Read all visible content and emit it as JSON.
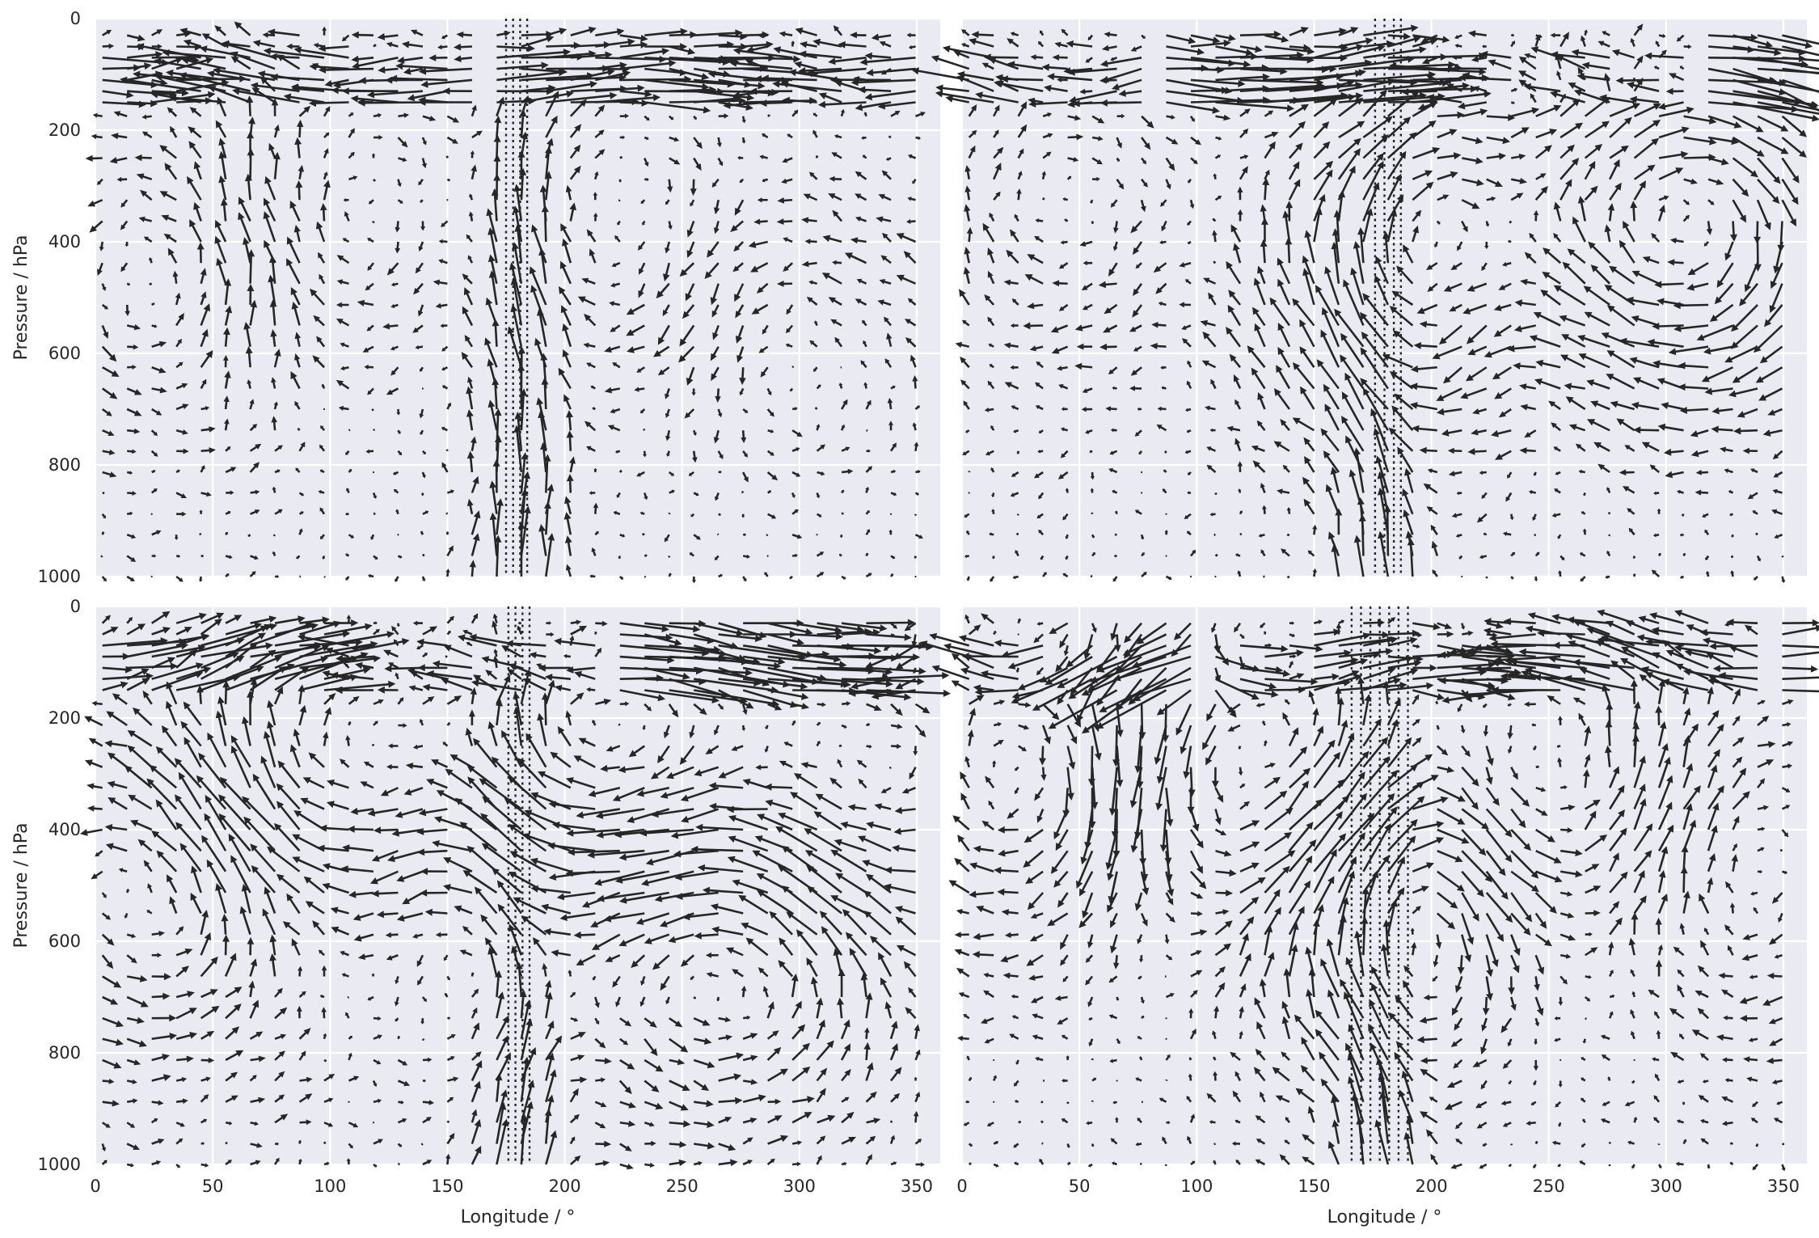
{
  "figure": {
    "colors": {
      "background": "#eaeaf2",
      "grid": "#ffffff",
      "ink": "#262626"
    }
  },
  "chart_data": [
    {
      "type": "quiver",
      "panel": "top-left",
      "xlabel": "",
      "ylabel": "Pressure / hPa",
      "xlim": [
        0,
        360
      ],
      "ylim": [
        1000,
        0
      ],
      "xticks": [
        0,
        50,
        100,
        150,
        200,
        250,
        300,
        350
      ],
      "yticks": [
        0,
        200,
        400,
        600,
        800,
        1000
      ],
      "show_xticklabels": false,
      "show_yticklabels": true,
      "grid": true,
      "seed": 11,
      "center_lon": 180,
      "dotted_markers": [
        175,
        178,
        181,
        184
      ],
      "vortices": [
        {
          "lon": 50,
          "p": 450,
          "strength": 1.0,
          "sign": -1
        },
        {
          "lon": 110,
          "p": 420,
          "strength": 1.5,
          "sign": 1
        },
        {
          "lon": 160,
          "p": 450,
          "strength": 1.3,
          "sign": -1
        },
        {
          "lon": 215,
          "p": 420,
          "strength": 1.2,
          "sign": 1
        },
        {
          "lon": 290,
          "p": 480,
          "strength": 0.7,
          "sign": -1
        },
        {
          "lon": 335,
          "p": 300,
          "strength": 0.6,
          "sign": 1
        }
      ]
    },
    {
      "type": "quiver",
      "panel": "top-right",
      "xlabel": "",
      "ylabel": "",
      "xlim": [
        0,
        360
      ],
      "ylim": [
        1000,
        0
      ],
      "xticks": [
        0,
        50,
        100,
        150,
        200,
        250,
        300,
        350
      ],
      "yticks": [
        0,
        200,
        400,
        600,
        800,
        1000
      ],
      "show_xticklabels": false,
      "show_yticklabels": false,
      "grid": true,
      "seed": 23,
      "center_lon": 178,
      "dotted_markers": [
        176,
        180,
        184,
        187
      ],
      "vortices": [
        {
          "lon": 60,
          "p": 350,
          "strength": 0.8,
          "sign": 1
        },
        {
          "lon": 130,
          "p": 450,
          "strength": 0.9,
          "sign": -1
        },
        {
          "lon": 178,
          "p": 450,
          "strength": 2.0,
          "sign": 1
        },
        {
          "lon": 230,
          "p": 500,
          "strength": 0.7,
          "sign": -1
        },
        {
          "lon": 305,
          "p": 380,
          "strength": 1.6,
          "sign": 1
        }
      ]
    },
    {
      "type": "quiver",
      "panel": "bottom-left",
      "xlabel": "Longitude / °",
      "ylabel": "Pressure / hPa",
      "xlim": [
        0,
        360
      ],
      "ylim": [
        1000,
        0
      ],
      "xticks": [
        0,
        50,
        100,
        150,
        200,
        250,
        300,
        350
      ],
      "yticks": [
        0,
        200,
        400,
        600,
        800,
        1000
      ],
      "show_xticklabels": true,
      "show_yticklabels": true,
      "grid": true,
      "seed": 37,
      "center_lon": 180,
      "dotted_markers": [
        176,
        179,
        182,
        185
      ],
      "vortices": [
        {
          "lon": 30,
          "p": 500,
          "strength": 1.1,
          "sign": -1
        },
        {
          "lon": 105,
          "p": 330,
          "strength": 1.3,
          "sign": 1
        },
        {
          "lon": 160,
          "p": 450,
          "strength": 0.9,
          "sign": -1
        },
        {
          "lon": 215,
          "p": 280,
          "strength": 1.5,
          "sign": 1
        },
        {
          "lon": 270,
          "p": 600,
          "strength": 1.1,
          "sign": -1
        },
        {
          "lon": 335,
          "p": 320,
          "strength": 1.0,
          "sign": 1
        }
      ]
    },
    {
      "type": "quiver",
      "panel": "bottom-right",
      "xlabel": "Longitude / °",
      "ylabel": "",
      "xlim": [
        0,
        360
      ],
      "ylim": [
        1000,
        0
      ],
      "xticks": [
        0,
        50,
        100,
        150,
        200,
        250,
        300,
        350
      ],
      "yticks": [
        0,
        200,
        400,
        600,
        800,
        1000
      ],
      "show_xticklabels": true,
      "show_yticklabels": false,
      "grid": true,
      "seed": 53,
      "center_lon": 178,
      "dotted_markers": [
        166,
        170,
        174,
        178,
        182,
        186,
        190
      ],
      "vortices": [
        {
          "lon": 40,
          "p": 300,
          "strength": 1.2,
          "sign": 1
        },
        {
          "lon": 120,
          "p": 350,
          "strength": 1.5,
          "sign": -1
        },
        {
          "lon": 178,
          "p": 500,
          "strength": 1.6,
          "sign": 1
        },
        {
          "lon": 250,
          "p": 380,
          "strength": 1.2,
          "sign": -1
        },
        {
          "lon": 320,
          "p": 450,
          "strength": 0.9,
          "sign": 1
        }
      ]
    }
  ]
}
